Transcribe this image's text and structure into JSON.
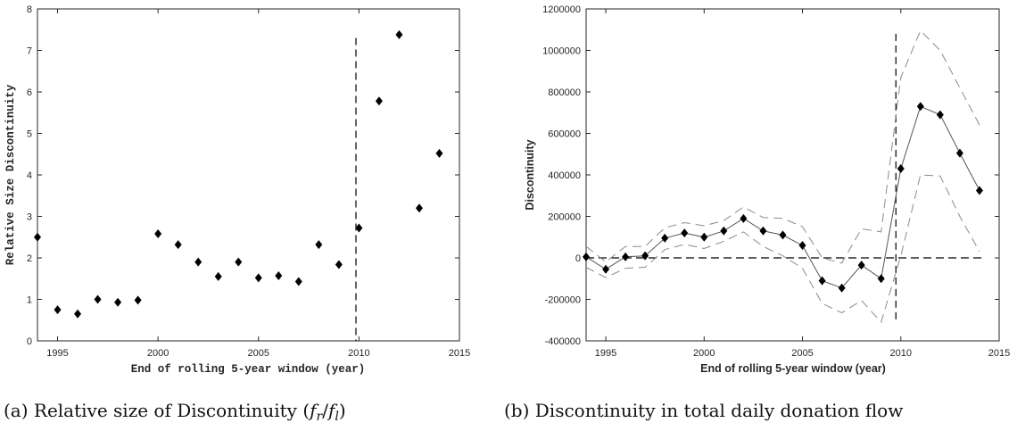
{
  "chart_data": [
    {
      "type": "scatter",
      "xlabel": "End of rolling 5-year window (year)",
      "ylabel": "Relative Size Discontinuity",
      "xlim": [
        1994,
        2015
      ],
      "ylim": [
        0,
        8
      ],
      "xticks": [
        1995,
        2000,
        2005,
        2010,
        2015
      ],
      "yticks": [
        0,
        1,
        2,
        3,
        4,
        5,
        6,
        7,
        8
      ],
      "vline_x": 2009.85,
      "grid": false,
      "series": [
        {
          "x": [
            1994,
            1995,
            1996,
            1997,
            1998,
            1999,
            2000,
            2001,
            2002,
            2003,
            2004,
            2005,
            2006,
            2007,
            2008,
            2009,
            2010,
            2011,
            2012,
            2013,
            2014
          ],
          "y": [
            2.5,
            0.75,
            0.65,
            1.0,
            0.93,
            0.98,
            2.58,
            2.32,
            1.9,
            1.55,
            1.9,
            1.52,
            1.57,
            1.43,
            2.32,
            1.84,
            2.72,
            5.78,
            7.38,
            3.2,
            4.52
          ]
        }
      ],
      "caption": "(a) Relative size of Discontinuity (f_r/f_l)"
    },
    {
      "type": "line",
      "xlabel": "End of rolling 5-year window (year)",
      "ylabel": "Discontinuity",
      "xlim": [
        1994,
        2015
      ],
      "ylim": [
        -400000,
        1200000
      ],
      "xticks": [
        1995,
        2000,
        2005,
        2010,
        2015
      ],
      "yticks": [
        -400000,
        -200000,
        0,
        200000,
        400000,
        600000,
        800000,
        1000000,
        1200000
      ],
      "vline_x": 2009.75,
      "hline_y": 0,
      "grid": false,
      "x": [
        1994,
        1995,
        1996,
        1997,
        1998,
        1999,
        2000,
        2001,
        2002,
        2003,
        2004,
        2005,
        2006,
        2007,
        2008,
        2009,
        2010,
        2011,
        2012,
        2013,
        2014
      ],
      "series": [
        {
          "role": "estimate",
          "values": [
            5000,
            -55000,
            5000,
            10000,
            95000,
            120000,
            100000,
            130000,
            190000,
            130000,
            110000,
            60000,
            -110000,
            -145000,
            -35000,
            -100000,
            430000,
            730000,
            690000,
            505000,
            325000
          ]
        },
        {
          "role": "upper",
          "values": [
            55000,
            -20000,
            55000,
            55000,
            145000,
            170000,
            155000,
            180000,
            245000,
            195000,
            190000,
            150000,
            0,
            -25000,
            140000,
            125000,
            870000,
            1095000,
            1000000,
            820000,
            640000
          ]
        },
        {
          "role": "lower",
          "values": [
            -45000,
            -95000,
            -50000,
            -45000,
            40000,
            65000,
            45000,
            80000,
            125000,
            55000,
            10000,
            -50000,
            -220000,
            -265000,
            -205000,
            -310000,
            10000,
            400000,
            395000,
            200000,
            30000
          ]
        }
      ],
      "caption": "(b) Discontinuity in total daily donation flow"
    }
  ]
}
